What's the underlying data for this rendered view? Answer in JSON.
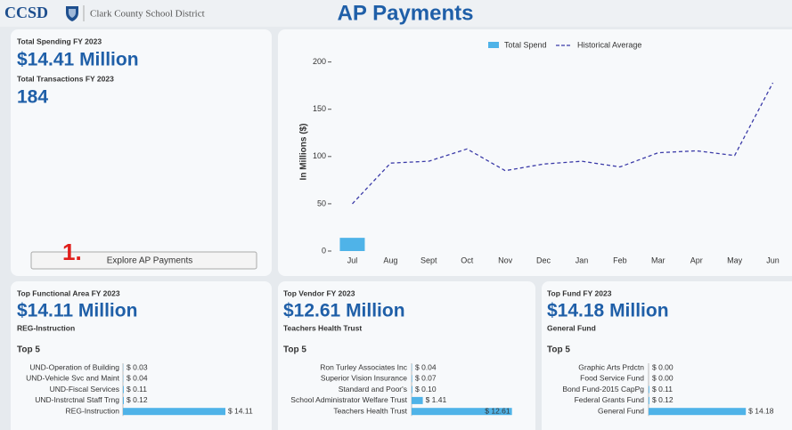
{
  "header": {
    "logo": "CCSD",
    "org": "Clark County School District",
    "title": "AP Payments"
  },
  "summary": {
    "spending_label": "Total Spending FY 2023",
    "spending_value": "$14.41 Million",
    "transactions_label": "Total Transactions FY 2023",
    "transactions_value": "184",
    "step": "1.",
    "button": "Explore AP Payments"
  },
  "panels": [
    {
      "title": "Top Functional Area FY 2023",
      "value": "$14.11 Million",
      "subtitle": "REG-Instruction",
      "top_label": "Top 5"
    },
    {
      "title": "Top Vendor FY 2023",
      "value": "$12.61 Million",
      "subtitle": "Teachers Health Trust",
      "top_label": "Top 5"
    },
    {
      "title": "Top Fund FY 2023",
      "value": "$14.18 Million",
      "subtitle": "General Fund",
      "top_label": "Top 5"
    }
  ],
  "chart_data": [
    {
      "type": "combo",
      "y_label": "In Millions ($)",
      "categories": [
        "Jul",
        "Aug",
        "Sept",
        "Oct",
        "Nov",
        "Dec",
        "Jan",
        "Feb",
        "Mar",
        "Apr",
        "May",
        "Jun"
      ],
      "series": [
        {
          "name": "Total Spend",
          "type": "bar",
          "color": "#4fb3e8",
          "values": [
            14,
            null,
            null,
            null,
            null,
            null,
            null,
            null,
            null,
            null,
            null,
            null
          ]
        },
        {
          "name": "Historical Average",
          "type": "line",
          "color": "#3b3ba8",
          "values": [
            50,
            93,
            95,
            108,
            85,
            92,
            95,
            89,
            104,
            106,
            101,
            178
          ]
        }
      ],
      "ylim": [
        0,
        210
      ],
      "yticks": [
        0,
        50,
        100,
        150,
        200
      ],
      "legend": "top"
    },
    {
      "type": "hbar",
      "color": "#4fb3e8",
      "xlim": [
        0,
        20
      ],
      "categories": [
        "UND-Operation of Building",
        "UND-Vehicle Svc and Maint",
        "UND-Fiscal Services",
        "UND-Instrctnal Staff Trng",
        "REG-Instruction"
      ],
      "values": [
        0.03,
        0.04,
        0.11,
        0.12,
        14.11
      ],
      "value_labels": [
        "$ 0.03",
        "$ 0.04",
        "$ 0.11",
        "$ 0.12",
        "$ 14.11"
      ]
    },
    {
      "type": "hbar",
      "color": "#4fb3e8",
      "xlim": [
        0,
        15
      ],
      "categories": [
        "Ron Turley Associates Inc",
        "Superior Vision Insurance",
        "Standard and Poor's",
        "School Administrator Welfare Trust",
        "Teachers Health Trust"
      ],
      "values": [
        0.04,
        0.07,
        0.1,
        1.41,
        12.61
      ],
      "value_labels": [
        "$ 0.04",
        "$ 0.07",
        "$ 0.10",
        "$ 1.41",
        "$ 12.61"
      ]
    },
    {
      "type": "hbar",
      "color": "#4fb3e8",
      "xlim": [
        0,
        20
      ],
      "categories": [
        "Graphic Arts Prdctn",
        "Food Service Fund",
        "Bond Fund-2015 CapPg",
        "Federal Grants Fund",
        "General Fund"
      ],
      "values": [
        0,
        0,
        0.11,
        0.12,
        14.18
      ],
      "value_labels": [
        "$ 0.00",
        "$ 0.00",
        "$ 0.11",
        "$ 0.12",
        "$ 14.18"
      ]
    }
  ]
}
